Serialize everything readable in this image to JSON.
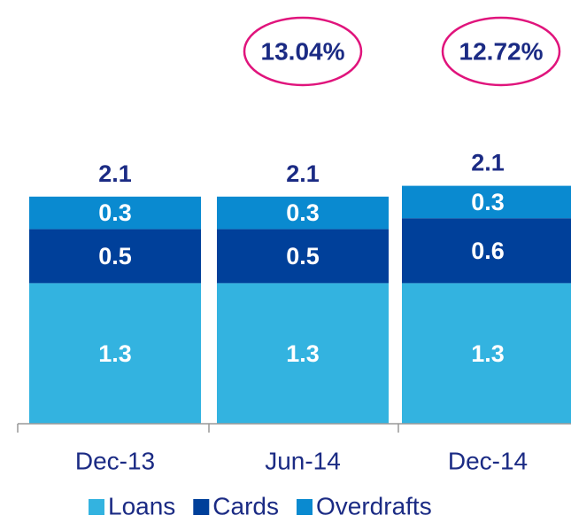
{
  "chart_data": {
    "type": "stacked_bar",
    "categories": [
      "Dec-13",
      "Jun-14",
      "Dec-14"
    ],
    "series": [
      {
        "name": "Loans",
        "color": "#33b3e0",
        "values": [
          1.3,
          1.3,
          1.3
        ]
      },
      {
        "name": "Cards",
        "color": "#00409a",
        "values": [
          0.5,
          0.5,
          0.6
        ]
      },
      {
        "name": "Overdrafts",
        "color": "#0a8ad0",
        "values": [
          0.3,
          0.3,
          0.3
        ]
      }
    ],
    "totals": [
      2.1,
      2.1,
      2.1
    ],
    "annotations": [
      "13.04%",
      "12.72%"
    ]
  }
}
